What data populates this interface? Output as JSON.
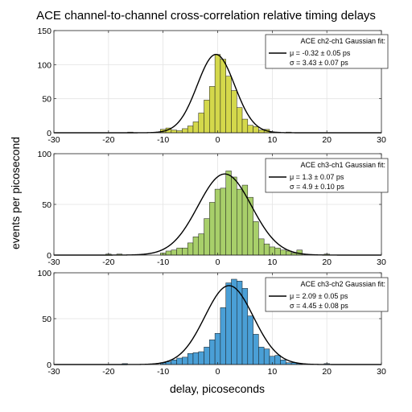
{
  "figure": {
    "title": "ACE channel-to-channel  cross-correlation relative timing delays",
    "ylabel": "events per picosecond",
    "xlabel": "delay, picoseconds"
  },
  "chart_data": [
    {
      "type": "bar",
      "bin_width": 1,
      "xlim": [
        -30,
        30
      ],
      "ylim": [
        0,
        150
      ],
      "xticks": [
        -30,
        -20,
        -10,
        0,
        10,
        20,
        30
      ],
      "yticks": [
        0,
        50,
        100,
        150
      ],
      "grid": true,
      "legend_location": "top-right",
      "bar_color": "#d4d84b",
      "bins": [
        [
          -16,
          1
        ],
        [
          -10,
          5
        ],
        [
          -9,
          7
        ],
        [
          -8,
          4
        ],
        [
          -7,
          3
        ],
        [
          -6,
          6
        ],
        [
          -5,
          10
        ],
        [
          -4,
          16
        ],
        [
          -3,
          29
        ],
        [
          -2,
          48
        ],
        [
          -1,
          68
        ],
        [
          0,
          115
        ],
        [
          1,
          108
        ],
        [
          2,
          83
        ],
        [
          3,
          62
        ],
        [
          4,
          37
        ],
        [
          5,
          20
        ],
        [
          6,
          11
        ],
        [
          7,
          9
        ],
        [
          8,
          4
        ],
        [
          9,
          5
        ],
        [
          10,
          1
        ],
        [
          11,
          1
        ],
        [
          13,
          1
        ]
      ],
      "fit": {
        "mu": -0.32,
        "sigma": 3.43,
        "amplitude": 115
      },
      "legend": {
        "title": "ACE ch2-ch1 Gaussian fit:",
        "line1": "μ = -0.32 ± 0.05 ps",
        "line2": "σ = 3.43 ± 0.07 ps"
      }
    },
    {
      "type": "bar",
      "bin_width": 1,
      "xlim": [
        -30,
        30
      ],
      "ylim": [
        0,
        100
      ],
      "xticks": [
        -30,
        -20,
        -10,
        0,
        10,
        20,
        30
      ],
      "yticks": [
        0,
        50,
        100
      ],
      "grid": true,
      "legend_location": "top-right",
      "bar_color": "#a8cf6a",
      "bins": [
        [
          -20,
          1
        ],
        [
          -18,
          1
        ],
        [
          -10,
          2
        ],
        [
          -9,
          4
        ],
        [
          -8,
          5
        ],
        [
          -7,
          7
        ],
        [
          -6,
          7
        ],
        [
          -5,
          12
        ],
        [
          -4,
          18
        ],
        [
          -3,
          21
        ],
        [
          -2,
          36
        ],
        [
          -1,
          52
        ],
        [
          0,
          65
        ],
        [
          1,
          66
        ],
        [
          2,
          83
        ],
        [
          3,
          77
        ],
        [
          4,
          65
        ],
        [
          5,
          69
        ],
        [
          6,
          57
        ],
        [
          7,
          33
        ],
        [
          8,
          16
        ],
        [
          9,
          11
        ],
        [
          10,
          8
        ],
        [
          11,
          7
        ],
        [
          12,
          5
        ],
        [
          13,
          4
        ],
        [
          14,
          2
        ],
        [
          15,
          5
        ],
        [
          20,
          1
        ]
      ],
      "fit": {
        "mu": 1.3,
        "sigma": 4.9,
        "amplitude": 80
      },
      "legend": {
        "title": "ACE ch3-ch1 Gaussian fit:",
        "line1": "μ = 1.3 ± 0.07 ps",
        "line2": "σ = 4.9 ± 0.10 ps"
      }
    },
    {
      "type": "bar",
      "bin_width": 1,
      "xlim": [
        -30,
        30
      ],
      "ylim": [
        0,
        100
      ],
      "xticks": [
        -30,
        -20,
        -10,
        0,
        10,
        20,
        30
      ],
      "yticks": [
        0,
        50,
        100
      ],
      "grid": true,
      "legend_location": "top-right",
      "bar_color": "#4a9fd6",
      "bins": [
        [
          -17,
          1
        ],
        [
          -10,
          2
        ],
        [
          -9,
          3
        ],
        [
          -8,
          5
        ],
        [
          -7,
          7
        ],
        [
          -6,
          8
        ],
        [
          -5,
          12
        ],
        [
          -4,
          13
        ],
        [
          -3,
          14
        ],
        [
          -2,
          19
        ],
        [
          -1,
          27
        ],
        [
          0,
          34
        ],
        [
          1,
          62
        ],
        [
          2,
          89
        ],
        [
          3,
          93
        ],
        [
          4,
          91
        ],
        [
          5,
          83
        ],
        [
          6,
          53
        ],
        [
          7,
          33
        ],
        [
          8,
          19
        ],
        [
          9,
          17
        ],
        [
          10,
          9
        ],
        [
          11,
          10
        ],
        [
          12,
          5
        ],
        [
          13,
          2
        ],
        [
          14,
          2
        ],
        [
          15,
          1
        ],
        [
          20,
          1
        ]
      ],
      "fit": {
        "mu": 2.09,
        "sigma": 4.45,
        "amplitude": 86
      },
      "legend": {
        "title": "ACE ch3-ch2 Gaussian fit:",
        "line1": "μ = 2.09 ± 0.05 ps",
        "line2": "σ = 4.45 ± 0.08 ps"
      }
    }
  ]
}
